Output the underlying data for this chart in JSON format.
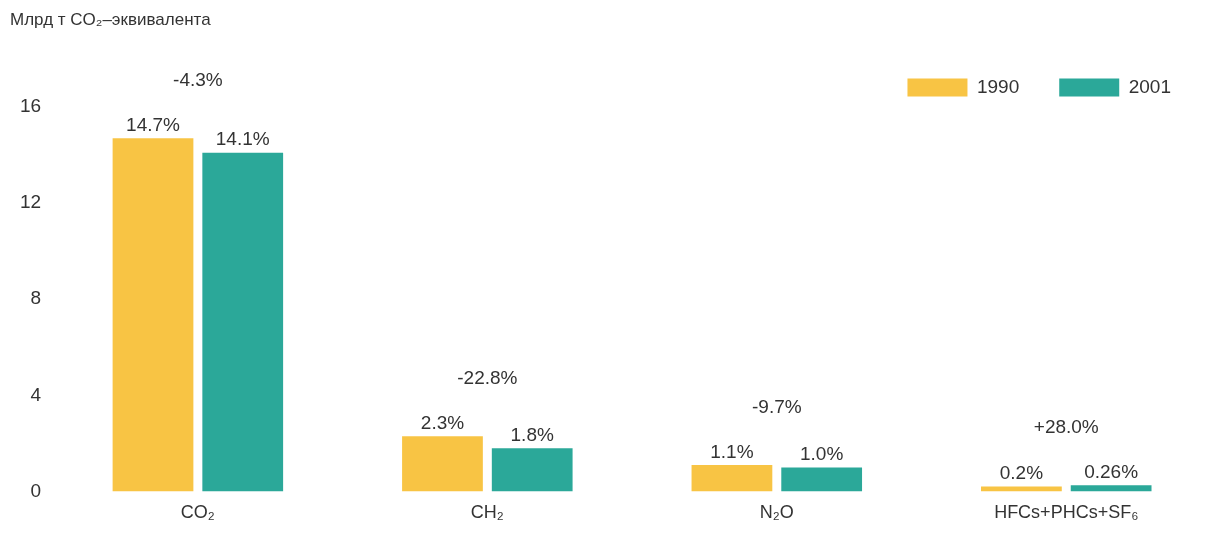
{
  "chart_data": {
    "type": "bar",
    "ylabel": "Млрд т CO₂–эквивалента",
    "categories": [
      "CO₂",
      "CH₂",
      "N₂O",
      "HFCs+PHCs+SF₆"
    ],
    "series": [
      {
        "name": "1990",
        "color": "#f8c444",
        "values": [
          14.7,
          2.3,
          1.1,
          0.2
        ],
        "value_labels": [
          "14.7%",
          "2.3%",
          "1.1%",
          "0.2%"
        ]
      },
      {
        "name": "2001",
        "color": "#2ba899",
        "values": [
          14.1,
          1.8,
          1.0,
          0.26
        ],
        "value_labels": [
          "14.1%",
          "1.8%",
          "1.0%",
          "0.26%"
        ]
      }
    ],
    "annotations": [
      "-4.3%",
      "-22.8%",
      "-9.7%",
      "+28.0%"
    ],
    "ylim": [
      0,
      16
    ],
    "yticks": [
      0,
      4,
      8,
      12,
      16
    ],
    "grid": false,
    "legend": "top right"
  }
}
